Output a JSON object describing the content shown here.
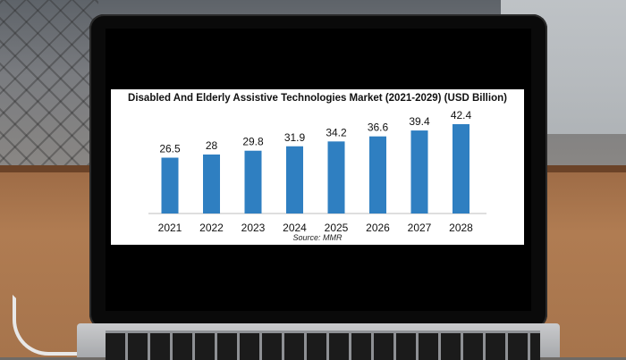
{
  "chart_data": {
    "type": "bar",
    "title": "Disabled And Elderly Assistive Technologies Market (2021-2029) (USD Billion)",
    "source": "Source: MMR",
    "categories": [
      "2021",
      "2022",
      "2023",
      "2024",
      "2025",
      "2026",
      "2027",
      "2028"
    ],
    "values": [
      26.5,
      28,
      29.8,
      31.9,
      34.2,
      36.6,
      39.4,
      42.4
    ],
    "value_labels": [
      "26.5",
      "28",
      "29.8",
      "31.9",
      "34.2",
      "36.6",
      "39.4",
      "42.4"
    ],
    "xlabel": "",
    "ylabel": "",
    "ylim": [
      0,
      42.4
    ],
    "grid": false,
    "bar_color": "#2f7fc1"
  }
}
